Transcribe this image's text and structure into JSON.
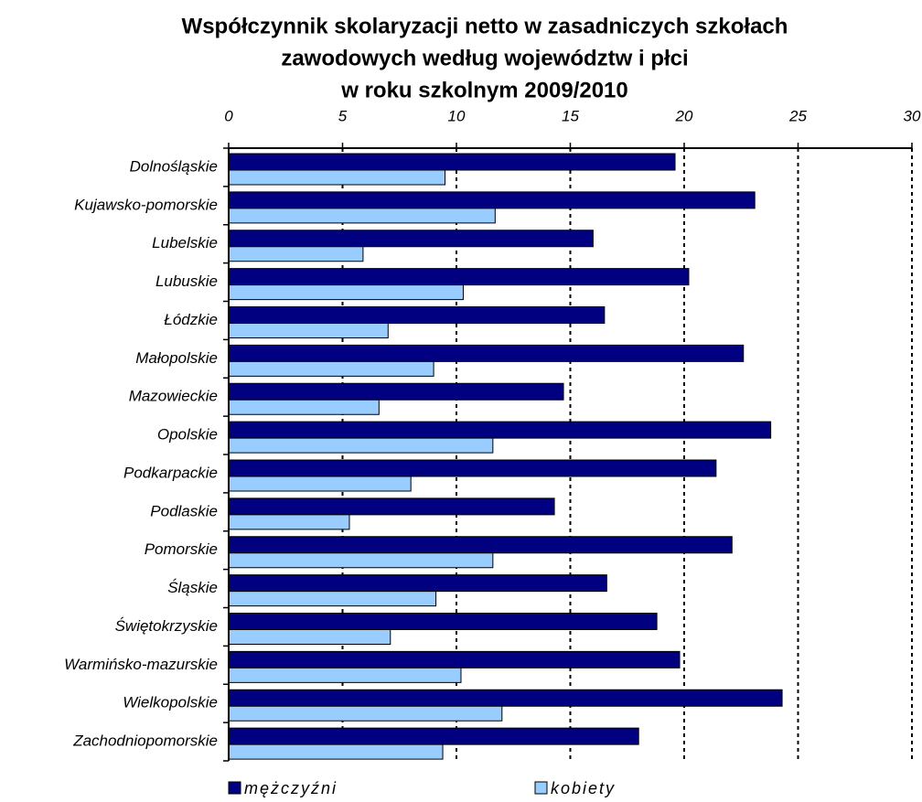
{
  "chart_data": {
    "type": "hbar",
    "title": [
      "Współczynnik skolaryzacji netto w zasadniczych szkołach",
      "zawodowych według województw i płci",
      "w roku szkolnym 2009/2010"
    ],
    "categories": [
      "Dolnośląskie",
      "Kujawsko-pomorskie",
      "Lubelskie",
      "Lubuskie",
      "Łódzkie",
      "Małopolskie",
      "Mazowieckie",
      "Opolskie",
      "Podkarpackie",
      "Podlaskie",
      "Pomorskie",
      "Śląskie",
      "Świętokrzyskie",
      "Warmińsko-mazurskie",
      "Wielkopolskie",
      "Zachodniopomorskie"
    ],
    "series": [
      {
        "name": "mężczyźni",
        "color": "#000080",
        "values": [
          19.6,
          23.1,
          16.0,
          20.2,
          16.5,
          22.6,
          14.7,
          23.8,
          21.4,
          14.3,
          22.1,
          16.6,
          18.8,
          19.8,
          24.3,
          18.0
        ]
      },
      {
        "name": "kobiety",
        "color": "#99ccff",
        "values": [
          9.5,
          11.7,
          5.9,
          10.3,
          7.0,
          9.0,
          6.6,
          11.6,
          8.0,
          5.3,
          11.6,
          9.1,
          7.1,
          10.2,
          12.0,
          9.4
        ]
      }
    ],
    "xlim": [
      0,
      30
    ],
    "xticks": [
      0,
      5,
      10,
      15,
      20,
      25,
      30
    ],
    "grid": true,
    "legend": "bottom"
  }
}
